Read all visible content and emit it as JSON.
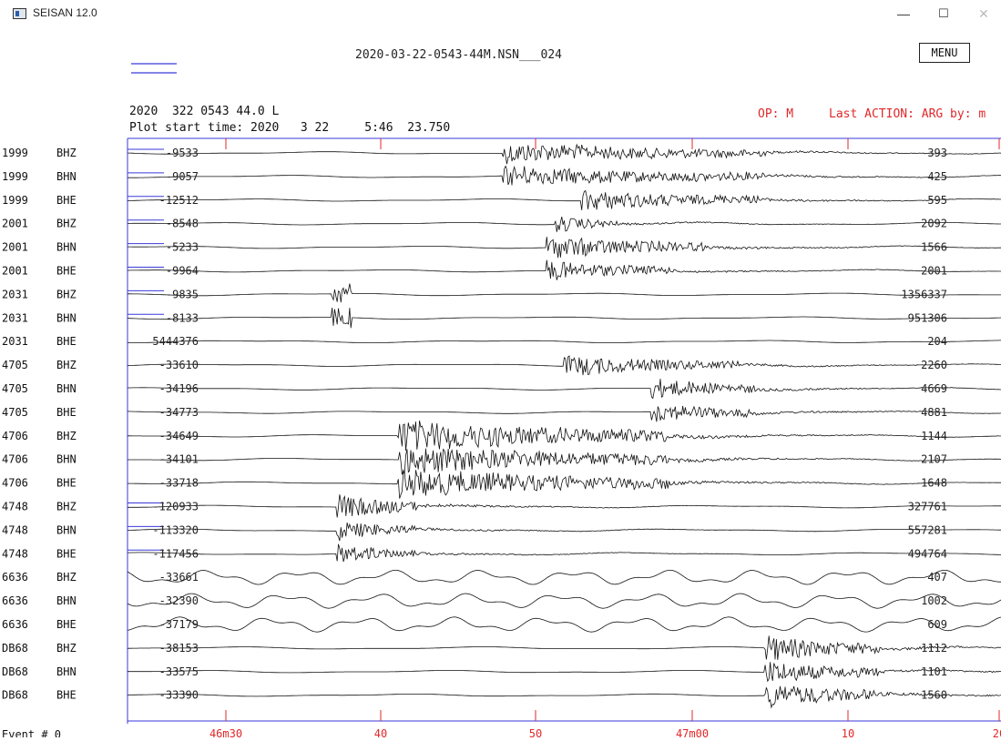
{
  "window": {
    "title": "SEISAN 12.0",
    "minimize": "—",
    "maximize": "☐",
    "close": "✕"
  },
  "header": {
    "filename": "2020-03-22-0543-44M.NSN___024",
    "menu_label": "MENU",
    "line1": "2020  322 0543 44.0 L",
    "line2": "Plot start time: 2020   3 22     5:46  23.750",
    "op": "OP: M",
    "last_action": "Last ACTION: ARG by: m"
  },
  "colors": {
    "trace": "#111111",
    "frame": "#3a3adb",
    "red": "#e0282a"
  },
  "traces": [
    {
      "station": "1999",
      "channel": "BHZ",
      "left": "-9533",
      "right": "393",
      "burst": [
        0.43,
        0.73
      ],
      "amp": 0.35,
      "spike": null
    },
    {
      "station": "1999",
      "channel": "BHN",
      "left": "-9057",
      "right": "425",
      "burst": [
        0.43,
        0.73
      ],
      "amp": 0.35,
      "spike": null
    },
    {
      "station": "1999",
      "channel": "BHE",
      "left": "-12512",
      "right": "595",
      "burst": [
        0.52,
        0.73
      ],
      "amp": 0.35,
      "spike": null
    },
    {
      "station": "2001",
      "channel": "BHZ",
      "left": "-8548",
      "right": "2092",
      "burst": [
        0.49,
        0.56
      ],
      "amp": 0.3,
      "spike": null
    },
    {
      "station": "2001",
      "channel": "BHN",
      "left": "-5233",
      "right": "1566",
      "burst": [
        0.48,
        0.66
      ],
      "amp": 0.4,
      "spike": null
    },
    {
      "station": "2001",
      "channel": "BHE",
      "left": "-9964",
      "right": "2001",
      "burst": [
        0.48,
        0.62
      ],
      "amp": 0.35,
      "spike": null
    },
    {
      "station": "2031",
      "channel": "BHZ",
      "left": "-9835",
      "right": "1356337",
      "burst": null,
      "amp": 0.0,
      "spike": 0.245
    },
    {
      "station": "2031",
      "channel": "BHN",
      "left": "-8133",
      "right": "951306",
      "burst": null,
      "amp": 0.0,
      "spike": 0.245
    },
    {
      "station": "2031",
      "channel": "BHE",
      "left": "5444376",
      "right": "204",
      "burst": null,
      "amp": 0.0,
      "spike": null
    },
    {
      "station": "4705",
      "channel": "BHZ",
      "left": "-33610",
      "right": "2260",
      "burst": [
        0.5,
        0.7
      ],
      "amp": 0.35,
      "spike": null
    },
    {
      "station": "4705",
      "channel": "BHN",
      "left": "-34196",
      "right": "4669",
      "burst": [
        0.6,
        0.72
      ],
      "amp": 0.35,
      "spike": null
    },
    {
      "station": "4705",
      "channel": "BHE",
      "left": "-34773",
      "right": "4881",
      "burst": [
        0.6,
        0.72
      ],
      "amp": 0.35,
      "spike": null
    },
    {
      "station": "4706",
      "channel": "BHZ",
      "left": "-34649",
      "right": "1144",
      "burst": [
        0.31,
        0.62
      ],
      "amp": 0.55,
      "spike": null
    },
    {
      "station": "4706",
      "channel": "BHN",
      "left": "-34101",
      "right": "2107",
      "burst": [
        0.31,
        0.62
      ],
      "amp": 0.5,
      "spike": null
    },
    {
      "station": "4706",
      "channel": "BHE",
      "left": "-33718",
      "right": "1648",
      "burst": [
        0.31,
        0.62
      ],
      "amp": 0.5,
      "spike": null
    },
    {
      "station": "4748",
      "channel": "BHZ",
      "left": "-120933",
      "right": "327761",
      "burst": [
        0.24,
        0.33
      ],
      "amp": 0.45,
      "spike": null
    },
    {
      "station": "4748",
      "channel": "BHN",
      "left": "-113320",
      "right": "557281",
      "burst": [
        0.24,
        0.33
      ],
      "amp": 0.35,
      "spike": null
    },
    {
      "station": "4748",
      "channel": "BHE",
      "left": "-117456",
      "right": "494764",
      "burst": [
        0.24,
        0.33
      ],
      "amp": 0.35,
      "spike": null
    },
    {
      "station": "6636",
      "channel": "BHZ",
      "left": "-33661",
      "right": "407",
      "burst": null,
      "amp": 0.55,
      "spike": null
    },
    {
      "station": "6636",
      "channel": "BHN",
      "left": "-32390",
      "right": "1002",
      "burst": null,
      "amp": 0.45,
      "spike": null
    },
    {
      "station": "6636",
      "channel": "BHE",
      "left": "-37179",
      "right": "609",
      "burst": null,
      "amp": 0.5,
      "spike": null
    },
    {
      "station": "DB68",
      "channel": "BHZ",
      "left": "-38153",
      "right": "1112",
      "burst": [
        0.73,
        0.86
      ],
      "amp": 0.45,
      "spike": null
    },
    {
      "station": "DB68",
      "channel": "BHN",
      "left": "-33575",
      "right": "1101",
      "burst": [
        0.73,
        0.86
      ],
      "amp": 0.4,
      "spike": null
    },
    {
      "station": "DB68",
      "channel": "BHE",
      "left": "-33390",
      "right": "1560",
      "burst": [
        0.73,
        0.86
      ],
      "amp": 0.45,
      "spike": null
    }
  ],
  "footer": {
    "event_label": "Event #",
    "event_number": "0"
  },
  "time_axis": [
    "46m30",
    "40",
    "50",
    "47m00",
    "10",
    "20"
  ]
}
